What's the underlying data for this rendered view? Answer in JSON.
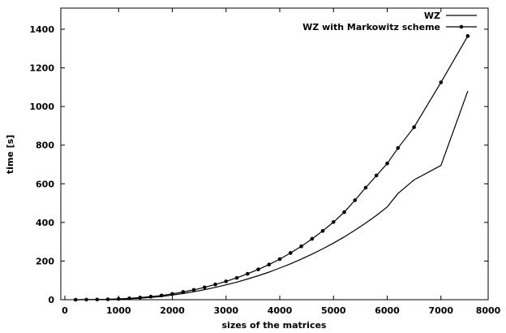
{
  "chart_data": {
    "type": "line",
    "title": "",
    "xlabel": "sizes of the matrices",
    "ylabel": "time [s]",
    "xlim": [
      0,
      8000
    ],
    "ylim": [
      0,
      1500
    ],
    "xticks": [
      0,
      1000,
      2000,
      3000,
      4000,
      5000,
      6000,
      7000,
      8000
    ],
    "yticks": [
      0,
      200,
      400,
      600,
      800,
      1000,
      1200,
      1400
    ],
    "xtick_labels": [
      "0",
      "1000",
      "2000",
      "3000",
      "4000",
      "5000",
      "6000",
      "7000",
      "8000"
    ],
    "ytick_labels": [
      "0",
      "200",
      "400",
      "600",
      "800",
      "1000",
      "1200",
      "1400"
    ],
    "grid": false,
    "legend_position": "top-right",
    "series": [
      {
        "name": "WZ",
        "markers": false,
        "x": [
          200,
          400,
          600,
          800,
          1000,
          1200,
          1400,
          1600,
          1800,
          2000,
          2200,
          2400,
          2600,
          2800,
          3000,
          3200,
          3400,
          3600,
          3800,
          4000,
          4200,
          4400,
          4600,
          4800,
          5000,
          5200,
          5400,
          5600,
          5800,
          6000,
          6200,
          6500,
          7000,
          7500
        ],
        "y": [
          0,
          0.3,
          0.7,
          1.5,
          3,
          5,
          8,
          12,
          17,
          24,
          32,
          41,
          52,
          64,
          77,
          91,
          107,
          124,
          143,
          164,
          186,
          210,
          236,
          263,
          293,
          325,
          360,
          397,
          437,
          480,
          550,
          620,
          695,
          1080
        ]
      },
      {
        "name": "WZ with Markowitz scheme",
        "markers": true,
        "x": [
          200,
          400,
          600,
          800,
          1000,
          1200,
          1400,
          1600,
          1800,
          2000,
          2200,
          2400,
          2600,
          2800,
          3000,
          3200,
          3400,
          3600,
          3800,
          4000,
          4200,
          4400,
          4600,
          4800,
          5000,
          5200,
          5400,
          5600,
          5800,
          6000,
          6200,
          6500,
          7000,
          7500
        ],
        "y": [
          0,
          0.5,
          1,
          2,
          4,
          7,
          11,
          16,
          22,
          30,
          40,
          51,
          64,
          79,
          95,
          113,
          134,
          157,
          182,
          210,
          242,
          276,
          315,
          356,
          402,
          453,
          515,
          580,
          643,
          705,
          785,
          893,
          1125,
          1365
        ]
      }
    ]
  }
}
